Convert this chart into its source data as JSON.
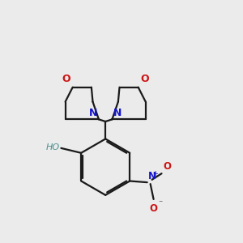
{
  "bg_color": "#ebebeb",
  "bond_color": "#1a1a1a",
  "N_color": "#1414cc",
  "O_color": "#cc1414",
  "OH_color": "#4a9090",
  "line_width": 1.6,
  "figsize": [
    3.0,
    3.0
  ],
  "dpi": 100,
  "xlim": [
    0.05,
    0.95
  ],
  "ylim": [
    0.05,
    0.95
  ]
}
